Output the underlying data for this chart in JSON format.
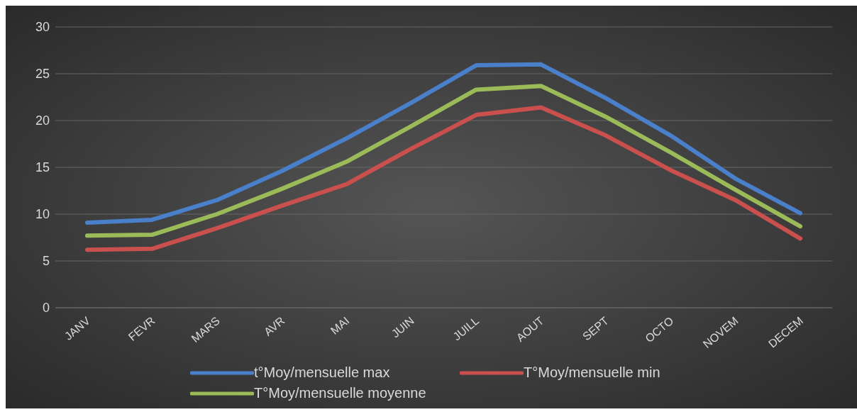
{
  "chart_data": {
    "type": "line",
    "categories": [
      "JANV",
      "FEVR",
      "MARS",
      "AVR",
      "MAI",
      "JUIN",
      "JUILL",
      "AOUT",
      "SEPT",
      "OCTO",
      "NOVEM",
      "DECEM"
    ],
    "series": [
      {
        "name": "t°Moy/mensuelle max",
        "color": "#4a7fc9",
        "values": [
          9.1,
          9.4,
          11.5,
          14.6,
          18.1,
          21.9,
          25.9,
          26.0,
          22.4,
          18.4,
          13.8,
          10.1
        ]
      },
      {
        "name": "T°Moy/mensuelle min",
        "color": "#c9504d",
        "values": [
          6.2,
          6.3,
          8.5,
          10.9,
          13.2,
          17.0,
          20.6,
          21.4,
          18.4,
          14.7,
          11.5,
          7.4
        ]
      },
      {
        "name": "T°Moy/mensuelle moyenne",
        "color": "#9bbb59",
        "values": [
          7.7,
          7.8,
          10.0,
          12.7,
          15.6,
          19.4,
          23.3,
          23.7,
          20.4,
          16.6,
          12.6,
          8.7
        ]
      }
    ],
    "ylim": [
      0,
      30
    ],
    "yticks": [
      0,
      5,
      10,
      15,
      20,
      25,
      30
    ],
    "grid": "y",
    "legend": "bottom",
    "marker": "none",
    "line_style": "solid"
  }
}
